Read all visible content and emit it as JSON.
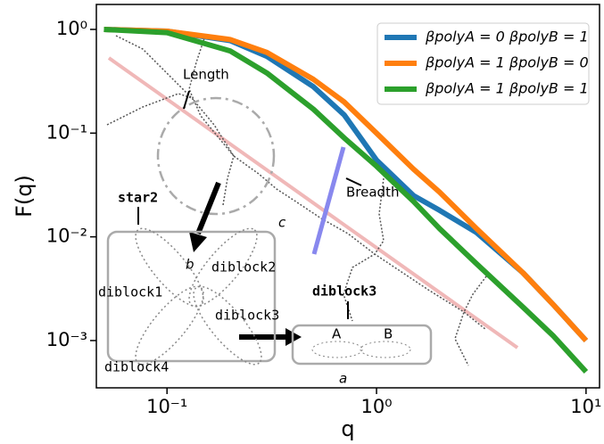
{
  "chart_data": {
    "type": "line",
    "xlabel": "q",
    "ylabel": "F(q)",
    "xscale": "log",
    "yscale": "log",
    "xlim": [
      0.046,
      11.6
    ],
    "ylim": [
      0.00035,
      1.74
    ],
    "xticks": [
      {
        "value": 0.1,
        "label": "10⁻¹"
      },
      {
        "value": 1,
        "label": "10⁰"
      },
      {
        "value": 10,
        "label": "10¹"
      }
    ],
    "yticks": [
      {
        "value": 1,
        "label": "10⁰"
      },
      {
        "value": 0.1,
        "label": "10⁻¹"
      },
      {
        "value": 0.01,
        "label": "10⁻²"
      },
      {
        "value": 0.001,
        "label": "10⁻³"
      }
    ],
    "legend": "upper right",
    "x": [
      0.05,
      0.1,
      0.2,
      0.3,
      0.5,
      0.7,
      1,
      1.5,
      2,
      3,
      5,
      7,
      10
    ],
    "series": [
      {
        "name": "βpolyA = 0 βpolyB = 1",
        "color": "#1f77b4",
        "values": [
          1.0,
          0.96,
          0.78,
          0.55,
          0.28,
          0.15,
          0.055,
          0.025,
          0.018,
          0.011,
          0.0045,
          0.0022,
          0.001
        ]
      },
      {
        "name": "βpolyA = 1 βpolyB = 0",
        "color": "#ff7f0e",
        "values": [
          1.0,
          0.96,
          0.8,
          0.6,
          0.33,
          0.2,
          0.1,
          0.045,
          0.027,
          0.012,
          0.0045,
          0.0022,
          0.001
        ]
      },
      {
        "name": "βpolyA = 1 βpolyB = 1",
        "color": "#2ca02c",
        "values": [
          1.0,
          0.93,
          0.62,
          0.38,
          0.17,
          0.09,
          0.048,
          0.022,
          0.012,
          0.0055,
          0.0021,
          0.0011,
          0.0005
        ]
      }
    ],
    "annotations": [
      "Length",
      "Breadth",
      "c",
      "star2",
      "b",
      "diblock2",
      "diblock1",
      "diblock3",
      "diblock4",
      "diblock3",
      "A",
      "B",
      "a"
    ]
  }
}
